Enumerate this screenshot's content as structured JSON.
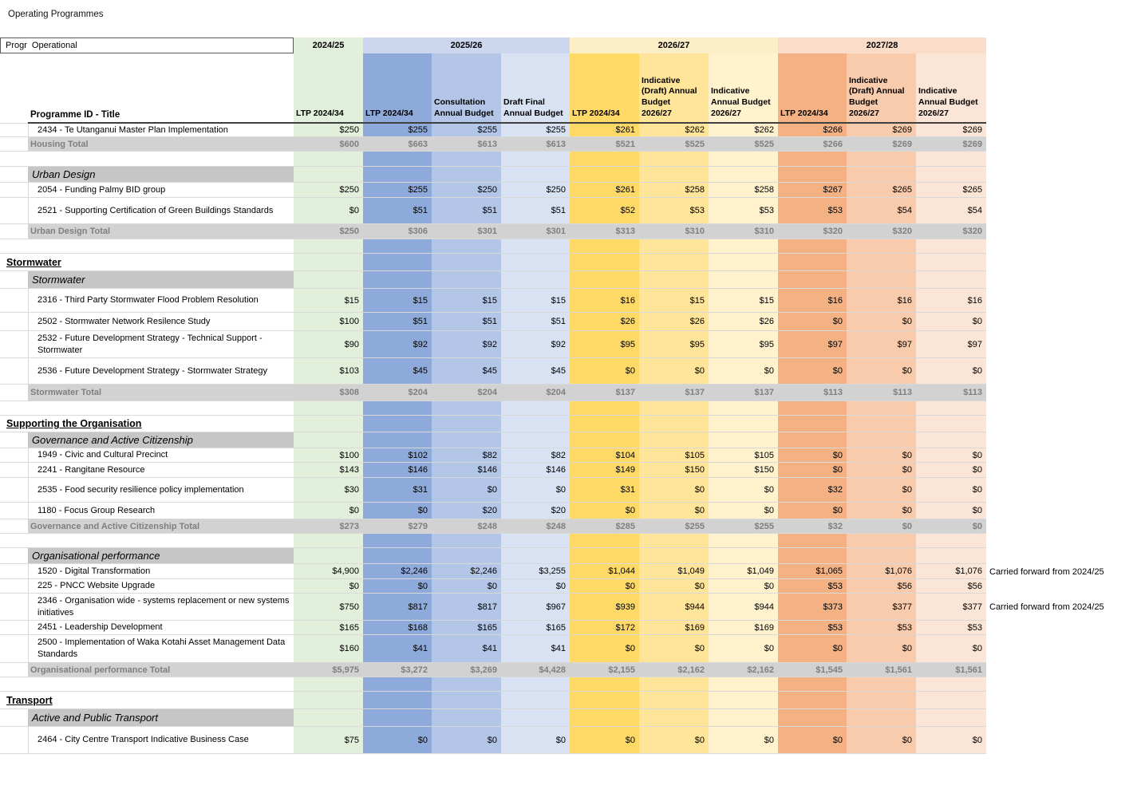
{
  "page_title": "Operating Programmes",
  "colors": {
    "total_row_bg": "#d2d2d2",
    "total_text": "#7f7f7f",
    "subsection_bg": "#c6c6c6",
    "gridline": "#d9d9d9",
    "header_border": "#404040",
    "box_border": "#595959"
  },
  "table": {
    "filter": {
      "program_label": "Progr",
      "type_value": "Operational"
    },
    "row_header": "Programme ID - Title",
    "year_groups": [
      {
        "label": "2024/25",
        "span": 1,
        "band_color": "#e2efda"
      },
      {
        "label": "2025/26",
        "span": 3,
        "band_color": "#ccd6ee"
      },
      {
        "label": "2026/27",
        "span": 3,
        "band_color": "#fcefc8"
      },
      {
        "label": "2027/28",
        "span": 3,
        "band_color": "#fbdcc8"
      }
    ],
    "columns": [
      {
        "header": "LTP 2024/34",
        "color": "#e2efda"
      },
      {
        "header": "LTP 2024/34",
        "color": "#8eaadb"
      },
      {
        "header": "Consultation\nAnnual Budget",
        "color": "#b4c6e7"
      },
      {
        "header": "Draft Final\nAnnual Budget",
        "color": "#d9e2f3"
      },
      {
        "header": "LTP 2024/34",
        "color": "#ffd966"
      },
      {
        "header": "Indicative\n(Draft) Annual\nBudget\n2026/27",
        "color": "#ffe599"
      },
      {
        "header": "Indicative\nAnnual Budget\n2026/27",
        "color": "#fff2cc"
      },
      {
        "header": "LTP 2024/34",
        "color": "#f4b183"
      },
      {
        "header": "Indicative\n(Draft) Annual\nBudget\n2026/27",
        "color": "#f8cbad"
      },
      {
        "header": "Indicative\nAnnual Budget\n2026/27",
        "color": "#fbe5d6"
      }
    ],
    "rows": [
      {
        "type": "item",
        "label": "2434 - Te Utanganui Master Plan Implementation",
        "values": [
          "$250",
          "$255",
          "$255",
          "$255",
          "$261",
          "$262",
          "$262",
          "$266",
          "$269",
          "$269"
        ]
      },
      {
        "type": "total",
        "label": "Housing Total",
        "values": [
          "$600",
          "$663",
          "$613",
          "$613",
          "$521",
          "$525",
          "$525",
          "$266",
          "$269",
          "$269"
        ]
      },
      {
        "type": "blank"
      },
      {
        "type": "subsection",
        "label": "Urban Design"
      },
      {
        "type": "item",
        "label": "2054 - Funding Palmy BID group",
        "values": [
          "$250",
          "$255",
          "$250",
          "$250",
          "$261",
          "$258",
          "$258",
          "$267",
          "$265",
          "$265"
        ]
      },
      {
        "type": "item",
        "label": "2521 - Supporting Certification of Green Buildings Standards",
        "values": [
          "$0",
          "$51",
          "$51",
          "$51",
          "$52",
          "$53",
          "$53",
          "$53",
          "$54",
          "$54"
        ]
      },
      {
        "type": "total",
        "label": "Urban Design Total",
        "values": [
          "$250",
          "$306",
          "$301",
          "$301",
          "$313",
          "$310",
          "$310",
          "$320",
          "$320",
          "$320"
        ]
      },
      {
        "type": "blank"
      },
      {
        "type": "section",
        "label": "Stormwater"
      },
      {
        "type": "subsection",
        "label": "Stormwater"
      },
      {
        "type": "item",
        "label": "2316 - Third Party Stormwater Flood Problem Resolution",
        "values": [
          "$15",
          "$15",
          "$15",
          "$15",
          "$16",
          "$15",
          "$15",
          "$16",
          "$16",
          "$16"
        ]
      },
      {
        "type": "item",
        "label": "2502 - Stormwater Network Resilence Study",
        "values": [
          "$100",
          "$51",
          "$51",
          "$51",
          "$26",
          "$26",
          "$26",
          "$0",
          "$0",
          "$0"
        ]
      },
      {
        "type": "item",
        "label": "2532 - Future Development Strategy - Technical Support - Stormwater",
        "values": [
          "$90",
          "$92",
          "$92",
          "$92",
          "$95",
          "$95",
          "$95",
          "$97",
          "$97",
          "$97"
        ]
      },
      {
        "type": "item",
        "label": "2536 - Future Development Strategy - Stormwater Strategy",
        "values": [
          "$103",
          "$45",
          "$45",
          "$45",
          "$0",
          "$0",
          "$0",
          "$0",
          "$0",
          "$0"
        ]
      },
      {
        "type": "total",
        "label": "Stormwater Total",
        "values": [
          "$308",
          "$204",
          "$204",
          "$204",
          "$137",
          "$137",
          "$137",
          "$113",
          "$113",
          "$113"
        ]
      },
      {
        "type": "blank"
      },
      {
        "type": "section",
        "label": "Supporting the Organisation"
      },
      {
        "type": "subsection",
        "label": "Governance and Active Citizenship"
      },
      {
        "type": "item",
        "label": "1949 - Civic and Cultural Precinct",
        "values": [
          "$100",
          "$102",
          "$82",
          "$82",
          "$104",
          "$105",
          "$105",
          "$0",
          "$0",
          "$0"
        ]
      },
      {
        "type": "item",
        "label": "2241 - Rangitane Resource",
        "values": [
          "$143",
          "$146",
          "$146",
          "$146",
          "$149",
          "$150",
          "$150",
          "$0",
          "$0",
          "$0"
        ]
      },
      {
        "type": "item",
        "label": "2535 - Food security resilience policy implementation",
        "values": [
          "$30",
          "$31",
          "$0",
          "$0",
          "$31",
          "$0",
          "$0",
          "$32",
          "$0",
          "$0"
        ]
      },
      {
        "type": "item",
        "label": "1180 - Focus Group Research",
        "values": [
          "$0",
          "$0",
          "$20",
          "$20",
          "$0",
          "$0",
          "$0",
          "$0",
          "$0",
          "$0"
        ]
      },
      {
        "type": "total",
        "label": "Governance and Active Citizenship Total",
        "values": [
          "$273",
          "$279",
          "$248",
          "$248",
          "$285",
          "$255",
          "$255",
          "$32",
          "$0",
          "$0"
        ]
      },
      {
        "type": "blank"
      },
      {
        "type": "subsection",
        "label": "Organisational performance"
      },
      {
        "type": "item",
        "label": "1520 - Digital Transformation",
        "values": [
          "$4,900",
          "$2,246",
          "$2,246",
          "$3,255",
          "$1,044",
          "$1,049",
          "$1,049",
          "$1,065",
          "$1,076",
          "$1,076"
        ],
        "note": "Carried forward from 2024/25"
      },
      {
        "type": "item",
        "label": "225 - PNCC Website Upgrade",
        "values": [
          "$0",
          "$0",
          "$0",
          "$0",
          "$0",
          "$0",
          "$0",
          "$53",
          "$56",
          "$56"
        ]
      },
      {
        "type": "item",
        "label": "2346 - Organisation wide - systems replacement or new systems initiatives",
        "values": [
          "$750",
          "$817",
          "$817",
          "$967",
          "$939",
          "$944",
          "$944",
          "$373",
          "$377",
          "$377"
        ],
        "note": "Carried forward from 2024/25"
      },
      {
        "type": "item",
        "label": "2451 - Leadership Development",
        "values": [
          "$165",
          "$168",
          "$165",
          "$165",
          "$172",
          "$169",
          "$169",
          "$53",
          "$53",
          "$53"
        ]
      },
      {
        "type": "item",
        "label": "2500 - Implementation of Waka Kotahi Asset Management Data Standards",
        "values": [
          "$160",
          "$41",
          "$41",
          "$41",
          "$0",
          "$0",
          "$0",
          "$0",
          "$0",
          "$0"
        ]
      },
      {
        "type": "total",
        "label": "Organisational performance Total",
        "values": [
          "$5,975",
          "$3,272",
          "$3,269",
          "$4,428",
          "$2,155",
          "$2,162",
          "$2,162",
          "$1,545",
          "$1,561",
          "$1,561"
        ]
      },
      {
        "type": "blank"
      },
      {
        "type": "section",
        "label": "Transport"
      },
      {
        "type": "subsection",
        "label": "Active and Public Transport"
      },
      {
        "type": "item",
        "label": "2464 - City Centre Transport Indicative Business Case",
        "values": [
          "$75",
          "$0",
          "$0",
          "$0",
          "$0",
          "$0",
          "$0",
          "$0",
          "$0",
          "$0"
        ]
      }
    ]
  }
}
